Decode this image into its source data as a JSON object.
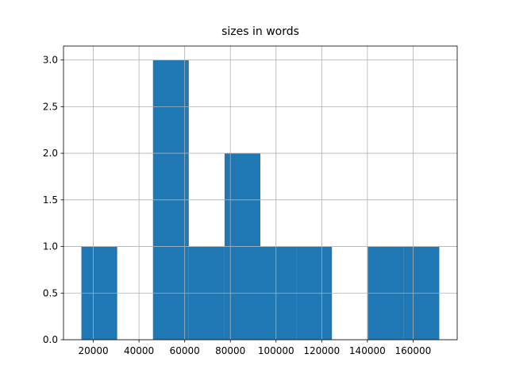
{
  "chart_data": {
    "type": "histogram",
    "title": "sizes in words",
    "bins": [
      14776,
      30448,
      46120,
      61792,
      77464,
      93136,
      108808,
      124480,
      140152,
      155824,
      171494
    ],
    "counts": [
      1,
      0,
      3,
      1,
      2,
      1,
      1,
      0,
      1,
      1
    ],
    "color": "#1f77b4",
    "xlim": [
      6940,
      179330
    ],
    "xticks": [
      20000,
      40000,
      60000,
      80000,
      100000,
      120000,
      140000,
      160000
    ],
    "ylim": [
      0,
      3.15
    ],
    "yticks": [
      {
        "value": 0,
        "label": "0.0"
      },
      {
        "value": 0.5,
        "label": "0.5"
      },
      {
        "value": 1,
        "label": "1.0"
      },
      {
        "value": 1.5,
        "label": "1.5"
      },
      {
        "value": 2,
        "label": "2.0"
      },
      {
        "value": 2.5,
        "label": "2.5"
      },
      {
        "value": 3,
        "label": "3.0"
      }
    ],
    "grid": true
  }
}
